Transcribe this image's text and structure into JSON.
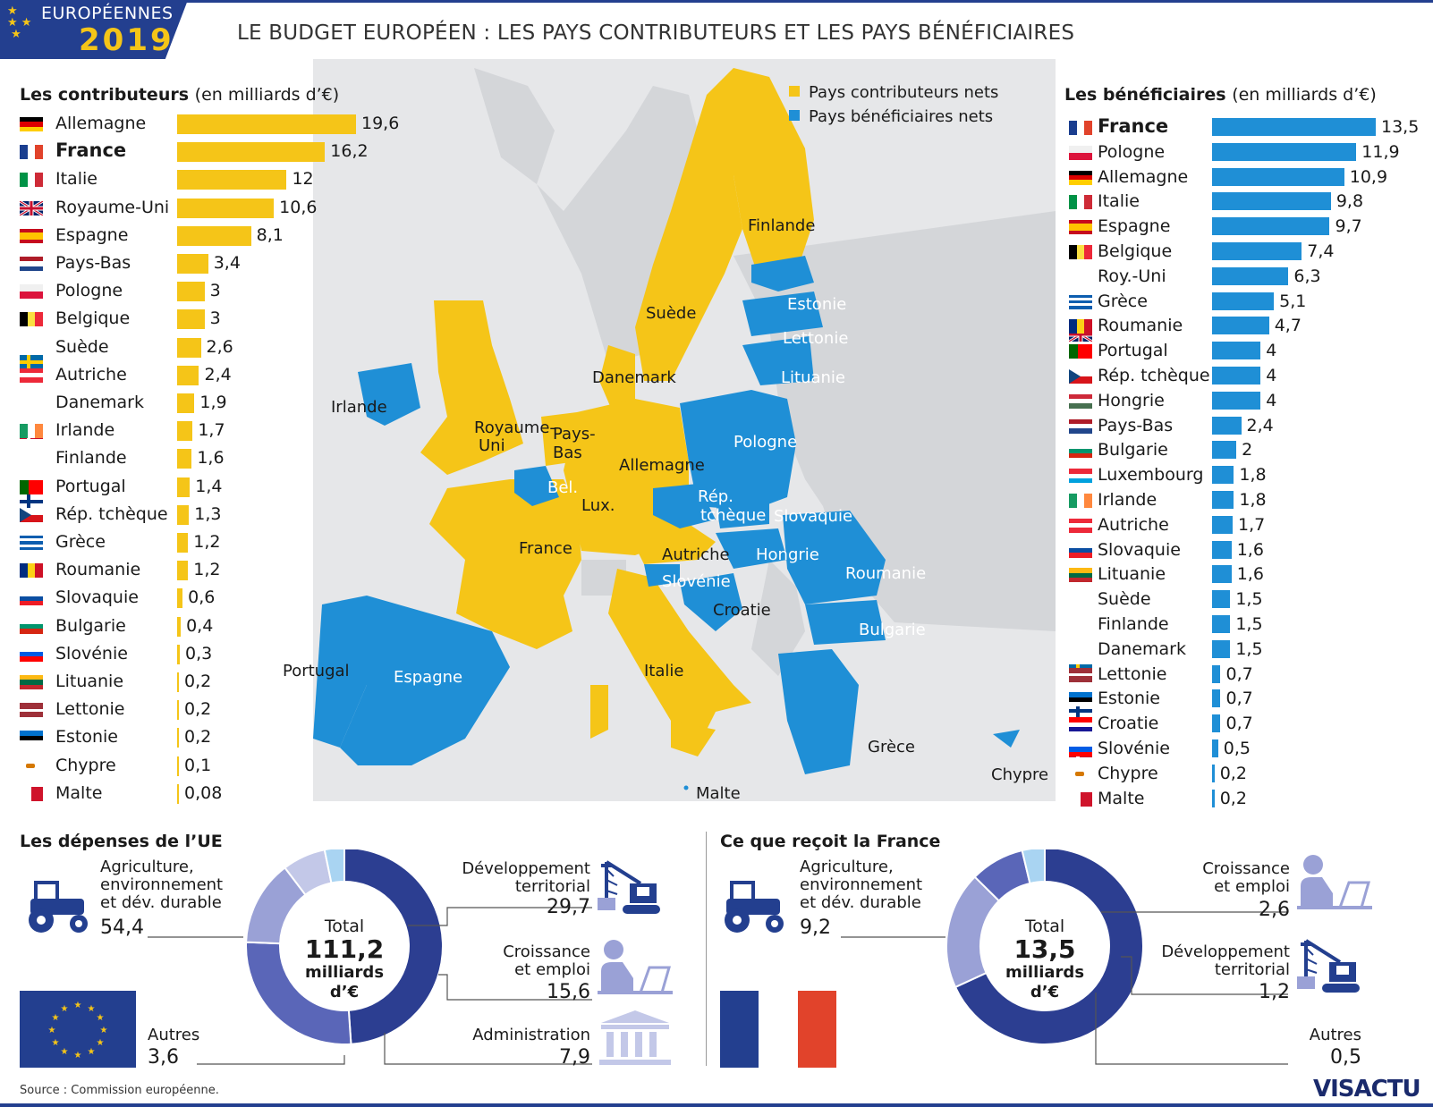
{
  "header": {
    "badge_top": "EUROPÉENNES",
    "badge_year": "2019",
    "title": "LE BUDGET EUROPÉEN : LES PAYS CONTRIBUTEURS ET LES PAYS BÉNÉFICIAIRES"
  },
  "contrib": {
    "title": "Les contributeurs",
    "subtitle": "(en milliards d’€)"
  },
  "benef": {
    "title": "Les bénéficiaires",
    "subtitle": "(en milliards d’€)"
  },
  "legend": {
    "contrib": "Pays contributeurs nets",
    "benef": "Pays bénéficiaires nets",
    "contrib_color": "#f5c518",
    "benef_color": "#1f8fd6"
  },
  "map_labels": [
    {
      "text": "Finlande",
      "color": "#1a1a1a"
    },
    {
      "text": "Suède",
      "color": "#1a1a1a"
    },
    {
      "text": "Estonie",
      "color": "#ffffff"
    },
    {
      "text": "Lettonie",
      "color": "#ffffff"
    },
    {
      "text": "Lituanie",
      "color": "#ffffff"
    },
    {
      "text": "Danemark",
      "color": "#1a1a1a"
    },
    {
      "text": "Irlande",
      "color": "#1a1a1a"
    },
    {
      "text": "Royaume-",
      "color": "#1a1a1a"
    },
    {
      "text": "Uni",
      "color": "#1a1a1a"
    },
    {
      "text": "Pays-",
      "color": "#1a1a1a"
    },
    {
      "text": "Bas",
      "color": "#1a1a1a"
    },
    {
      "text": "Allemagne",
      "color": "#1a1a1a"
    },
    {
      "text": "Pologne",
      "color": "#ffffff"
    },
    {
      "text": "Bel.",
      "color": "#ffffff"
    },
    {
      "text": "Lux.",
      "color": "#1a1a1a"
    },
    {
      "text": "Rép.",
      "color": "#ffffff"
    },
    {
      "text": "tchèque",
      "color": "#ffffff"
    },
    {
      "text": "Slovaquie",
      "color": "#ffffff"
    },
    {
      "text": "France",
      "color": "#1a1a1a"
    },
    {
      "text": "Autriche",
      "color": "#1a1a1a"
    },
    {
      "text": "Hongrie",
      "color": "#ffffff"
    },
    {
      "text": "Roumanie",
      "color": "#ffffff"
    },
    {
      "text": "Slovénie",
      "color": "#ffffff"
    },
    {
      "text": "Croatie",
      "color": "#1a1a1a"
    },
    {
      "text": "Bulgarie",
      "color": "#ffffff"
    },
    {
      "text": "Portugal",
      "color": "#1a1a1a"
    },
    {
      "text": "Espagne",
      "color": "#ffffff"
    },
    {
      "text": "Italie",
      "color": "#1a1a1a"
    },
    {
      "text": "Grèce",
      "color": "#1a1a1a"
    },
    {
      "text": "Chypre",
      "color": "#1a1a1a"
    },
    {
      "text": "Malte",
      "color": "#1a1a1a"
    }
  ],
  "depenses": {
    "title": "Les dépenses de l’UE",
    "total_label": "Total",
    "total_value": "111,2",
    "unit_line1": "milliards",
    "unit_line2": "d’€",
    "agri_l1": "Agriculture,",
    "agri_l2": "environnement",
    "agri_l3": "et dév. durable",
    "agri_val": "54,4",
    "dev_l1": "Développement",
    "dev_l2": "territorial",
    "dev_val": "29,7",
    "crois_l1": "Croissance",
    "crois_l2": "et emploi",
    "crois_val": "15,6",
    "admin_l1": "Administration",
    "admin_val": "7,9",
    "autres_l1": "Autres",
    "autres_val": "3,6"
  },
  "france": {
    "title": "Ce que reçoit la France",
    "total_label": "Total",
    "total_value": "13,5",
    "unit_line1": "milliards",
    "unit_line2": "d’€",
    "agri_l1": "Agriculture,",
    "agri_l2": "environnement",
    "agri_l3": "et dév. durable",
    "agri_val": "9,2",
    "crois_l1": "Croissance",
    "crois_l2": "et emploi",
    "crois_val": "2,6",
    "dev_l1": "Développement",
    "dev_l2": "territorial",
    "dev_val": "1,2",
    "autres_l1": "Autres",
    "autres_val": "0,5"
  },
  "footer": {
    "source": "Source : Commission européenne.",
    "logo": "VISACTU"
  },
  "colors": {
    "donut_agri": "#2c3e91",
    "donut_dev": "#5a66b8",
    "donut_crois": "#9aa1d6",
    "donut_admin": "#c3c8e8",
    "donut_autres": "#a9d4f2"
  },
  "chart_data": [
    {
      "type": "bar",
      "title": "Les contributeurs",
      "subtitle": "(en milliards d’€)",
      "categories": [
        "Allemagne",
        "France",
        "Italie",
        "Royaume-Uni",
        "Espagne",
        "Pays-Bas",
        "Pologne",
        "Belgique",
        "Suède",
        "Autriche",
        "Danemark",
        "Irlande",
        "Finlande",
        "Portugal",
        "Rép. tchèque",
        "Grèce",
        "Roumanie",
        "Slovaquie",
        "Bulgarie",
        "Slovénie",
        "Lituanie",
        "Lettonie",
        "Estonie",
        "Chypre",
        "Malte"
      ],
      "values": [
        19.6,
        16.2,
        12,
        10.6,
        8.1,
        3.4,
        3,
        3,
        2.6,
        2.4,
        1.9,
        1.7,
        1.6,
        1.4,
        1.3,
        1.2,
        1.2,
        0.6,
        0.4,
        0.3,
        0.2,
        0.2,
        0.2,
        0.1,
        0.08
      ],
      "labels": [
        "19,6",
        "16,2",
        "12",
        "10,6",
        "8,1",
        "3,4",
        "3",
        "3",
        "2,6",
        "2,4",
        "1,9",
        "1,7",
        "1,6",
        "1,4",
        "1,3",
        "1,2",
        "1,2",
        "0,6",
        "0,4",
        "0,3",
        "0,2",
        "0,2",
        "0,2",
        "0,1",
        "0,08"
      ],
      "bold": [
        "France"
      ],
      "flags": [
        "DE",
        "FR",
        "IT",
        "UK",
        "ES",
        "NL",
        "PL",
        "BE",
        "SE",
        "AT",
        "DK",
        "IE",
        "FI",
        "PT",
        "CZ",
        "GR",
        "RO",
        "SK",
        "BG",
        "SI",
        "LT",
        "LV",
        "EE",
        "CY",
        "MT"
      ]
    },
    {
      "type": "bar",
      "title": "Les bénéficiaires",
      "subtitle": "(en milliards d’€)",
      "categories": [
        "France",
        "Pologne",
        "Allemagne",
        "Italie",
        "Espagne",
        "Belgique",
        "Roy.-Uni",
        "Grèce",
        "Roumanie",
        "Portugal",
        "Rép. tchèque",
        "Hongrie",
        "Pays-Bas",
        "Bulgarie",
        "Luxembourg",
        "Irlande",
        "Autriche",
        "Slovaquie",
        "Lituanie",
        "Suède",
        "Finlande",
        "Danemark",
        "Lettonie",
        "Estonie",
        "Croatie",
        "Slovénie",
        "Chypre",
        "Malte"
      ],
      "values": [
        13.5,
        11.9,
        10.9,
        9.8,
        9.7,
        7.4,
        6.3,
        5.1,
        4.7,
        4,
        4,
        4,
        2.4,
        2,
        1.8,
        1.8,
        1.7,
        1.6,
        1.6,
        1.5,
        1.5,
        1.5,
        0.7,
        0.7,
        0.7,
        0.5,
        0.2,
        0.2
      ],
      "labels": [
        "13,5",
        "11,9",
        "10,9",
        "9,8",
        "9,7",
        "7,4",
        "6,3",
        "5,1",
        "4,7",
        "4",
        "4",
        "4",
        "2,4",
        "2",
        "1,8",
        "1,8",
        "1,7",
        "1,6",
        "1,6",
        "1,5",
        "1,5",
        "1,5",
        "0,7",
        "0,7",
        "0,7",
        "0,5",
        "0,2",
        "0,2"
      ],
      "bold": [
        "France"
      ],
      "flags": [
        "FR",
        "PL",
        "DE",
        "IT",
        "ES",
        "BE",
        "UK",
        "GR",
        "RO",
        "PT",
        "CZ",
        "HU",
        "NL",
        "BG",
        "LU",
        "IE",
        "AT",
        "SK",
        "LT",
        "SE",
        "FI",
        "DK",
        "LV",
        "EE",
        "HR",
        "SI",
        "CY",
        "MT"
      ]
    },
    {
      "type": "pie",
      "title": "Les dépenses de l’UE",
      "categories": [
        "Agriculture, environnement et dév. durable",
        "Développement territorial",
        "Croissance et emploi",
        "Administration",
        "Autres"
      ],
      "values": [
        54.4,
        29.7,
        15.6,
        7.9,
        3.6
      ],
      "total": 111.2
    },
    {
      "type": "pie",
      "title": "Ce que reçoit la France",
      "categories": [
        "Agriculture, environnement et dév. durable",
        "Croissance et emploi",
        "Développement territorial",
        "Autres"
      ],
      "values": [
        9.2,
        2.6,
        1.2,
        0.5
      ],
      "total": 13.5
    }
  ]
}
